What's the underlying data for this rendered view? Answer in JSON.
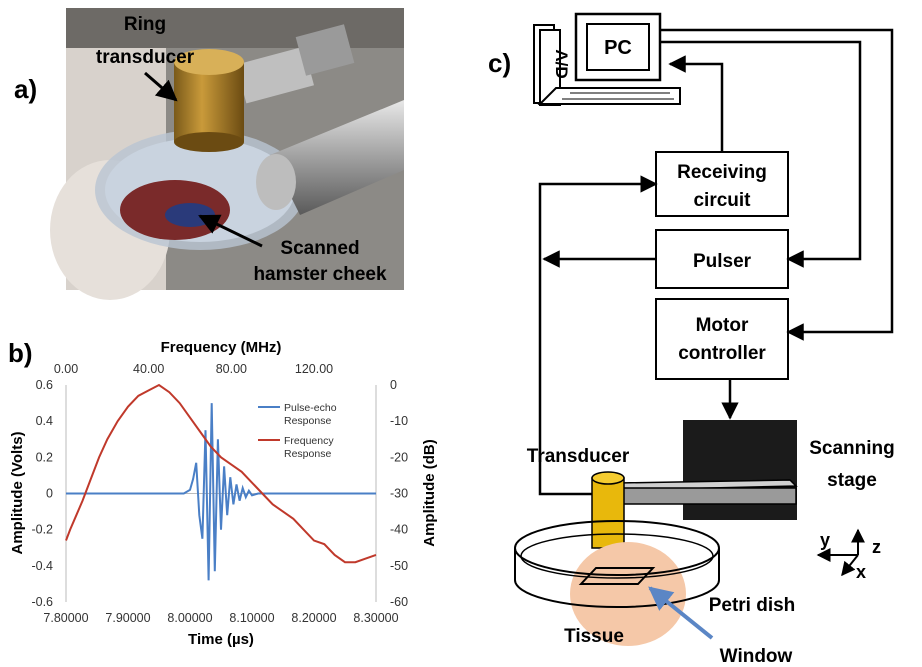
{
  "panels": {
    "a": "a)",
    "b": "b)",
    "c": "c)"
  },
  "photo": {
    "label_transducer": [
      "Ring",
      "transducer"
    ],
    "label_cheek": [
      "Scanned",
      "hamster cheek"
    ]
  },
  "diagram": {
    "pc": "PC",
    "ad": "A/D",
    "receiving": [
      "Receiving",
      "circuit"
    ],
    "pulser": "Pulser",
    "motor": [
      "Motor",
      "controller"
    ],
    "transducer": "Transducer",
    "stage": [
      "Scanning",
      "stage"
    ],
    "petri": "Petri dish",
    "tissue": "Tissue",
    "window": "Window",
    "axes": {
      "z": "z",
      "y": "y",
      "x": "x"
    }
  },
  "chart_data": {
    "type": "line",
    "title": "",
    "xlabel": "Time (µs)",
    "x2label": "Frequency (MHz)",
    "ylabel": "Amplitude (Volts)",
    "y2label": "Amplitude (dB)",
    "xlim": [
      7.8,
      8.3
    ],
    "x2lim": [
      0,
      150
    ],
    "ylim": [
      -0.6,
      0.6
    ],
    "y2lim": [
      -60,
      0
    ],
    "x_ticks": [
      "7.80000",
      "7.90000",
      "8.00000",
      "8.10000",
      "8.20000",
      "8.30000"
    ],
    "x2_ticks": [
      "0.00",
      "40.00",
      "80.00",
      "120.00"
    ],
    "y_ticks": [
      "0.6",
      "0.4",
      "0.2",
      "0",
      "-0.2",
      "-0.4",
      "-0.6"
    ],
    "y2_ticks": [
      "0",
      "-10",
      "-20",
      "-30",
      "-40",
      "-50",
      "-60"
    ],
    "legend": [
      "Pulse-echo Response",
      "Frequency Response"
    ],
    "colors": {
      "pulse": "#4a7fc6",
      "freq": "#c0392b"
    },
    "series": [
      {
        "name": "Pulse-echo Response",
        "axis": "x-time/y-volts",
        "x": [
          7.8,
          7.99,
          8.0,
          8.005,
          8.01,
          8.015,
          8.02,
          8.025,
          8.03,
          8.035,
          8.04,
          8.045,
          8.05,
          8.055,
          8.06,
          8.065,
          8.07,
          8.075,
          8.08,
          8.085,
          8.09,
          8.095,
          8.1,
          8.11,
          8.3
        ],
        "y": [
          0,
          0,
          0.02,
          0.08,
          0.17,
          -0.12,
          -0.25,
          0.35,
          -0.48,
          0.5,
          -0.43,
          0.3,
          -0.2,
          0.15,
          -0.12,
          0.09,
          -0.06,
          0.05,
          -0.04,
          0.03,
          -0.02,
          0.015,
          -0.01,
          0,
          0
        ]
      },
      {
        "name": "Frequency Response",
        "axis": "x2-mhz/y2-db",
        "x": [
          0,
          2,
          5,
          8,
          12,
          16,
          20,
          25,
          30,
          35,
          40,
          45,
          50,
          55,
          60,
          65,
          70,
          75,
          80,
          85,
          90,
          95,
          100,
          105,
          110,
          115,
          120,
          125,
          130,
          135,
          140,
          145,
          150
        ],
        "y": [
          -43,
          -40,
          -36,
          -32,
          -26,
          -20,
          -15,
          -10,
          -6,
          -3,
          -1.5,
          0,
          -2,
          -5,
          -9,
          -13,
          -17,
          -20,
          -22,
          -24,
          -27,
          -30,
          -33,
          -35,
          -37,
          -40,
          -43,
          -44,
          -47,
          -49,
          -49,
          -48,
          -47
        ]
      }
    ]
  }
}
